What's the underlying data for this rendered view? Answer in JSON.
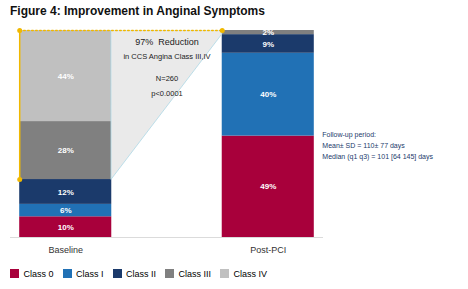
{
  "chart_data": {
    "type": "bar",
    "title": "Figure 4: Improvement in Anginal Symptoms",
    "categories": [
      "Baseline",
      "Post-PCI"
    ],
    "series": [
      {
        "name": "Class 0",
        "color": "#A8003B",
        "values": [
          10,
          49
        ],
        "value_labels": [
          "10%",
          "49%"
        ]
      },
      {
        "name": "Class I",
        "color": "#2171B5",
        "values": [
          6,
          40
        ],
        "value_labels": [
          "6%",
          "40%"
        ]
      },
      {
        "name": "Class II",
        "color": "#1B3A6B",
        "values": [
          12,
          9
        ],
        "value_labels": [
          "12%",
          "9%"
        ]
      },
      {
        "name": "Class III",
        "color": "#808080",
        "values": [
          28,
          2
        ],
        "value_labels": [
          "28%",
          "2%"
        ]
      },
      {
        "name": "Class IV",
        "color": "#C0C0C0",
        "values": [
          44,
          0
        ],
        "value_labels": [
          "44%",
          null
        ]
      }
    ],
    "stacked": true,
    "data_labels": true,
    "ylim": [
      0,
      100
    ],
    "tick_labels": "x",
    "grid": false,
    "legend": "lower left",
    "annotations": [
      "97%  Reduction",
      "in CCS Angina Class III,IV",
      "N=260",
      "p<0.0001",
      "Follow-up period:\nMean± SD = 110± 77 days\nMedian (q1 q3) = 101 [64 145] days"
    ]
  }
}
